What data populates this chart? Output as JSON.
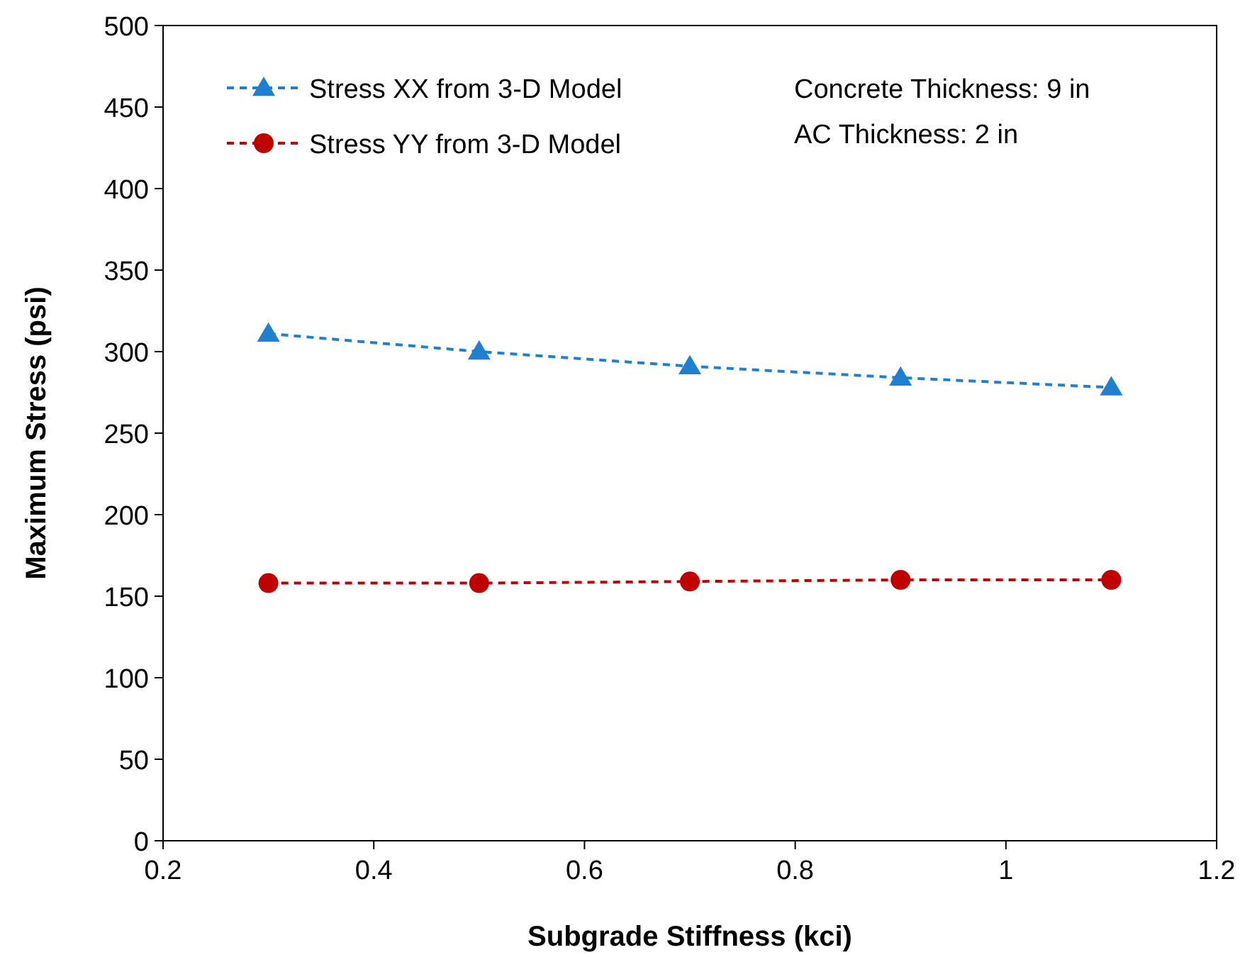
{
  "chart_data": {
    "type": "line",
    "xlabel": "Subgrade Stiffness (kci)",
    "ylabel": "Maximum Stress (psi)",
    "x": [
      0.3,
      0.5,
      0.7,
      0.9,
      1.1
    ],
    "series": [
      {
        "name": "Stress XX from 3-D Model",
        "color": "#1f7fd0",
        "values": [
          311,
          300,
          291,
          284,
          278
        ],
        "marker": "triangle"
      },
      {
        "name": "Stress YY from 3-D Model",
        "color": "#c00000",
        "values": [
          158,
          158,
          159,
          160,
          160
        ],
        "marker": "circle"
      }
    ],
    "xlim": [
      0.2,
      1.2
    ],
    "xticks": [
      0.2,
      0.4,
      0.6,
      0.8,
      {
        "value": 1,
        "label": "1"
      },
      1.2
    ],
    "ylim": [
      0,
      500
    ],
    "yticks": [
      0,
      50,
      100,
      150,
      200,
      250,
      300,
      350,
      400,
      450,
      500
    ],
    "grid": false,
    "legend": "top left",
    "line_style": "dashed",
    "annotations": [
      "Concrete Thickness: 9 in",
      "AC Thickness: 2 in"
    ]
  }
}
